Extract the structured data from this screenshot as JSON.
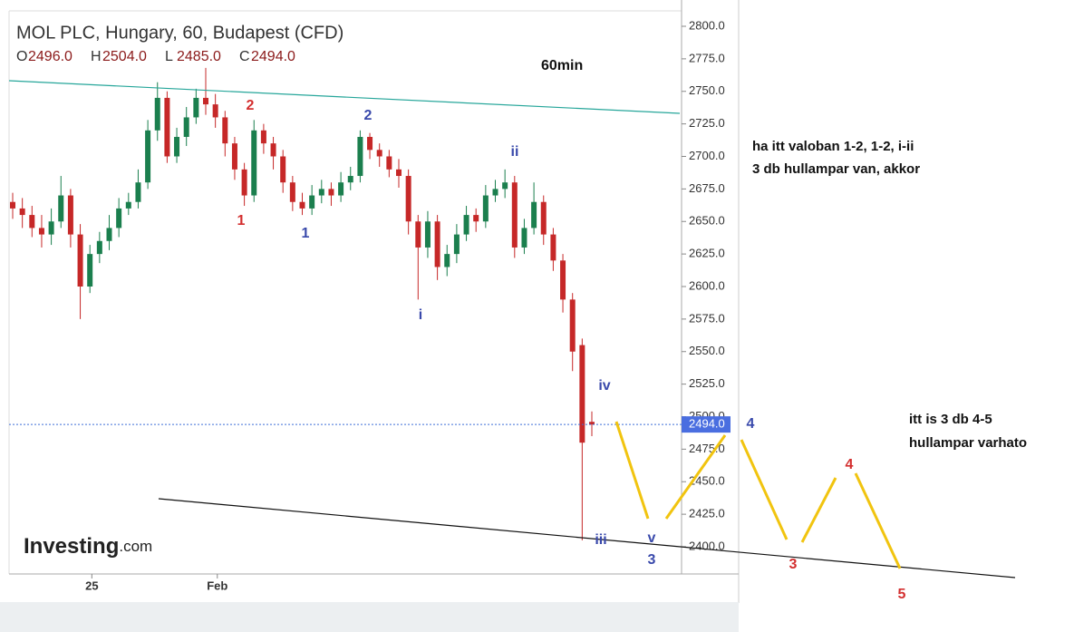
{
  "chart_data": {
    "type": "candlestick",
    "title": "MOL PLC, Hungary, 60, Budapest (CFD)",
    "ohlc_legend": [
      {
        "key": "O",
        "text": "2496.0"
      },
      {
        "key": "H",
        "text": "2504.0"
      },
      {
        "key": "L",
        "text": "2485.0"
      },
      {
        "key": "C",
        "text": "2494.0"
      }
    ],
    "up_color": "#1b7f4e",
    "down_color": "#c62828",
    "open": [
      2665,
      2660,
      2655,
      2645,
      2640,
      2650,
      2670,
      2640,
      2600,
      2625,
      2635,
      2645,
      2660,
      2665,
      2680,
      2720,
      2745,
      2700,
      2715,
      2730,
      2745,
      2740,
      2730,
      2710,
      2690,
      2670,
      2720,
      2710,
      2700,
      2680,
      2665,
      2660,
      2670,
      2675,
      2670,
      2680,
      2685,
      2715,
      2705,
      2700,
      2690,
      2685,
      2650,
      2630,
      2650,
      2615,
      2625,
      2640,
      2655,
      2650,
      2670,
      2675,
      2680,
      2630,
      2645,
      2665,
      2640,
      2620,
      2590,
      2555,
      2496
    ],
    "high": [
      2672,
      2668,
      2662,
      2655,
      2660,
      2685,
      2675,
      2648,
      2632,
      2642,
      2655,
      2668,
      2672,
      2690,
      2728,
      2757,
      2750,
      2722,
      2738,
      2752,
      2768,
      2748,
      2735,
      2715,
      2695,
      2728,
      2725,
      2715,
      2705,
      2685,
      2672,
      2678,
      2682,
      2680,
      2688,
      2692,
      2720,
      2718,
      2710,
      2705,
      2698,
      2690,
      2655,
      2658,
      2655,
      2632,
      2648,
      2662,
      2660,
      2678,
      2682,
      2690,
      2685,
      2652,
      2680,
      2670,
      2645,
      2625,
      2595,
      2560,
      2504
    ],
    "low": [
      2652,
      2645,
      2638,
      2630,
      2632,
      2645,
      2630,
      2575,
      2595,
      2618,
      2628,
      2638,
      2655,
      2660,
      2675,
      2712,
      2695,
      2695,
      2708,
      2725,
      2732,
      2722,
      2700,
      2682,
      2662,
      2665,
      2702,
      2690,
      2672,
      2658,
      2655,
      2655,
      2664,
      2662,
      2665,
      2674,
      2680,
      2698,
      2692,
      2684,
      2676,
      2640,
      2590,
      2622,
      2605,
      2608,
      2618,
      2635,
      2642,
      2645,
      2665,
      2668,
      2622,
      2625,
      2640,
      2632,
      2612,
      2580,
      2535,
      2405,
      2485
    ],
    "close": [
      2660,
      2655,
      2645,
      2640,
      2650,
      2670,
      2640,
      2600,
      2625,
      2635,
      2645,
      2660,
      2665,
      2680,
      2720,
      2745,
      2700,
      2715,
      2730,
      2745,
      2740,
      2730,
      2710,
      2690,
      2670,
      2720,
      2710,
      2700,
      2680,
      2665,
      2660,
      2670,
      2675,
      2670,
      2680,
      2685,
      2715,
      2705,
      2700,
      2690,
      2685,
      2650,
      2630,
      2650,
      2615,
      2625,
      2640,
      2655,
      2650,
      2670,
      2675,
      2680,
      2630,
      2645,
      2665,
      2640,
      2620,
      2590,
      2550,
      2480,
      2494
    ],
    "last_price_label": "2494.0",
    "ylim": [
      2400,
      2800
    ],
    "yticks": [
      {
        "value": 2400,
        "label": "2400.0"
      },
      {
        "value": 2425,
        "label": "2425.0"
      },
      {
        "value": 2450,
        "label": "2450.0"
      },
      {
        "value": 2475,
        "label": "2475.0"
      },
      {
        "value": 2500,
        "label": "2500.0"
      },
      {
        "value": 2525,
        "label": "2525.0"
      },
      {
        "value": 2550,
        "label": "2550.0"
      },
      {
        "value": 2575,
        "label": "2575.0"
      },
      {
        "value": 2600,
        "label": "2600.0"
      },
      {
        "value": 2625,
        "label": "2625.0"
      },
      {
        "value": 2650,
        "label": "2650.0"
      },
      {
        "value": 2675,
        "label": "2675.0"
      },
      {
        "value": 2700,
        "label": "2700.0"
      },
      {
        "value": 2725,
        "label": "2725.0"
      },
      {
        "value": 2750,
        "label": "2750.0"
      },
      {
        "value": 2775,
        "label": "2775.0"
      },
      {
        "value": 2800,
        "label": "2800.0"
      }
    ],
    "xticks": [
      {
        "value": 8.2,
        "label": "25"
      },
      {
        "value": 21.2,
        "label": "Feb"
      }
    ],
    "logo": {
      "brand": "Investing",
      "suffix": ".com"
    },
    "annotations": {
      "timeframe": "60min",
      "waves": [
        "2",
        "1",
        "1",
        "2",
        "i",
        "ii",
        "iv",
        "iii",
        "v",
        "3",
        "4",
        "3",
        "4",
        "5"
      ],
      "notes": [
        "ha itt valoban 1-2, 1-2, i-ii",
        "3 db hullampar van, akkor",
        "itt is 3 db 4-5",
        "hullampar varhato"
      ]
    }
  }
}
